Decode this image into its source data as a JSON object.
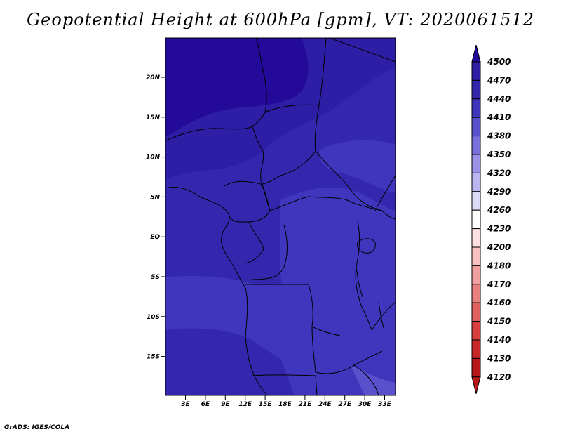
{
  "title": "Geopotential Height at 600hPa [gpm], VT: 2020061512",
  "credit": "GrADS: IGES/COLA",
  "map": {
    "lat_labels": [
      "20N",
      "15N",
      "10N",
      "5N",
      "EQ",
      "5S",
      "10S",
      "15S"
    ],
    "lon_labels": [
      "3E",
      "6E",
      "9E",
      "12E",
      "15E",
      "18E",
      "21E",
      "24E",
      "27E",
      "30E",
      "33E"
    ]
  },
  "colorbar": {
    "levels": [
      "4500",
      "4470",
      "4440",
      "4410",
      "4380",
      "4350",
      "4320",
      "4290",
      "4260",
      "4230",
      "4200",
      "4180",
      "4170",
      "4160",
      "4150",
      "4140",
      "4130",
      "4120"
    ],
    "colors": [
      "#230a98",
      "#2e1da5",
      "#3527ad",
      "#4036bd",
      "#5a50cc",
      "#7a70dc",
      "#9b93e8",
      "#bcb6f0",
      "#dcdaf7",
      "#ffffff",
      "#fde0e0",
      "#f8c0c0",
      "#f0a0a0",
      "#e88080",
      "#e06060",
      "#d84040",
      "#c82828",
      "#b81818"
    ]
  }
}
